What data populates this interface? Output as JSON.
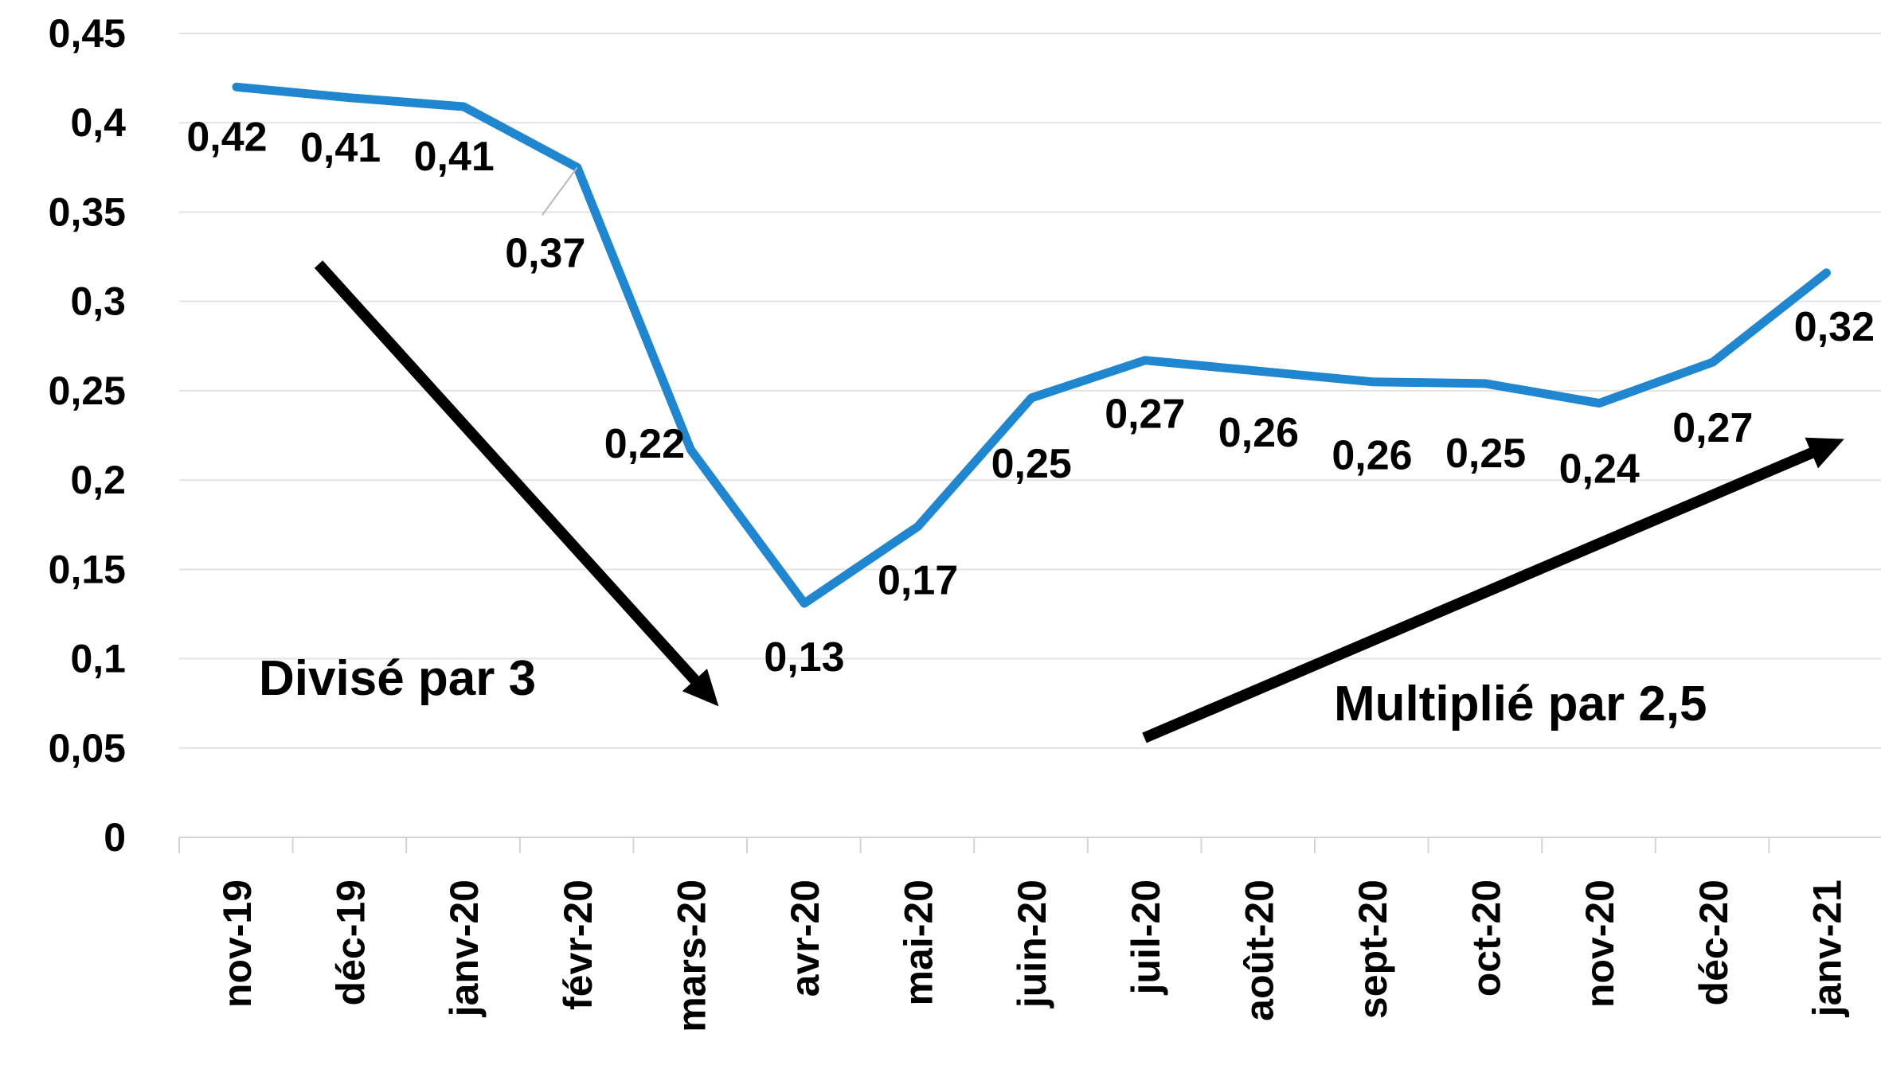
{
  "chart_data": {
    "type": "line",
    "categories": [
      "nov-19",
      "déc-19",
      "janv-20",
      "févr-20",
      "mars-20",
      "avr-20",
      "mai-20",
      "juin-20",
      "juil-20",
      "août-20",
      "sept-20",
      "oct-20",
      "nov-20",
      "déc-20",
      "janv-21"
    ],
    "series": [
      {
        "values": [
          0.42,
          0.414,
          0.409,
          0.375,
          0.217,
          0.131,
          0.174,
          0.246,
          0.267,
          0.261,
          0.255,
          0.254,
          0.243,
          0.266,
          0.316
        ],
        "labels": [
          "0,42",
          "0,41",
          "0,41",
          "0,37",
          "0,22",
          "0,13",
          "0,17",
          "0,25",
          "0,27",
          "0,26",
          "0,26",
          "0,25",
          "0,24",
          "0,27",
          "0,32"
        ],
        "color": "#1f86cf"
      }
    ],
    "ylim": [
      0,
      0.45
    ],
    "yticks": [
      "0",
      "0,05",
      "0,1",
      "0,15",
      "0,2",
      "0,25",
      "0,3",
      "0,35",
      "0,4",
      "0,45"
    ],
    "grid": true,
    "annotations": [
      {
        "text": "Divisé par 3",
        "arrow": "down",
        "color": "#000000"
      },
      {
        "text": "Multiplié par 2,5",
        "arrow": "up",
        "color": "#000000"
      }
    ]
  }
}
